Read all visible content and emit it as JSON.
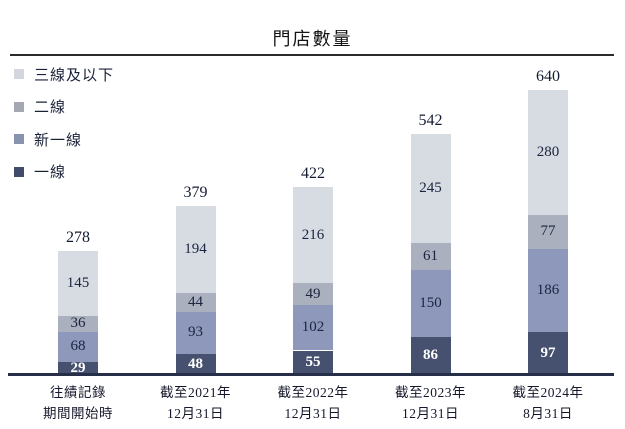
{
  "chart_data": {
    "type": "bar",
    "stacked": true,
    "title": "門店數量",
    "xlabel": "",
    "ylabel": "",
    "legend_position": "top-left",
    "grid": false,
    "categories": [
      [
        "往績記錄",
        "期間開始時"
      ],
      [
        "截至2021年",
        "12月31日"
      ],
      [
        "截至2022年",
        "12月31日"
      ],
      [
        "截至2023年",
        "12月31日"
      ],
      [
        "截至2024年",
        "8月31日"
      ]
    ],
    "series": [
      {
        "name": "一線",
        "color": "#46516f",
        "label_color": "#ffffff",
        "label_bold": true,
        "values": [
          29,
          48,
          55,
          86,
          97
        ]
      },
      {
        "name": "新一線",
        "color": "#8d98ba",
        "label_color": "#1b2440",
        "label_bold": false,
        "values": [
          68,
          93,
          102,
          150,
          186
        ]
      },
      {
        "name": "二線",
        "color": "#aab0bd",
        "label_color": "#1b2440",
        "label_bold": false,
        "values": [
          36,
          44,
          49,
          61,
          77
        ]
      },
      {
        "name": "三線及以下",
        "color": "#d7dbe2",
        "label_color": "#1b2440",
        "label_bold": false,
        "values": [
          145,
          194,
          216,
          245,
          280
        ]
      }
    ],
    "totals": [
      278,
      379,
      422,
      542,
      640
    ],
    "legend": [
      {
        "label": "三線及以下",
        "color": "#d3d7dd"
      },
      {
        "label": "二線",
        "color": "#a3a8b1"
      },
      {
        "label": "新一線",
        "color": "#8893af"
      },
      {
        "label": "一線",
        "color": "#414c6d"
      }
    ]
  }
}
